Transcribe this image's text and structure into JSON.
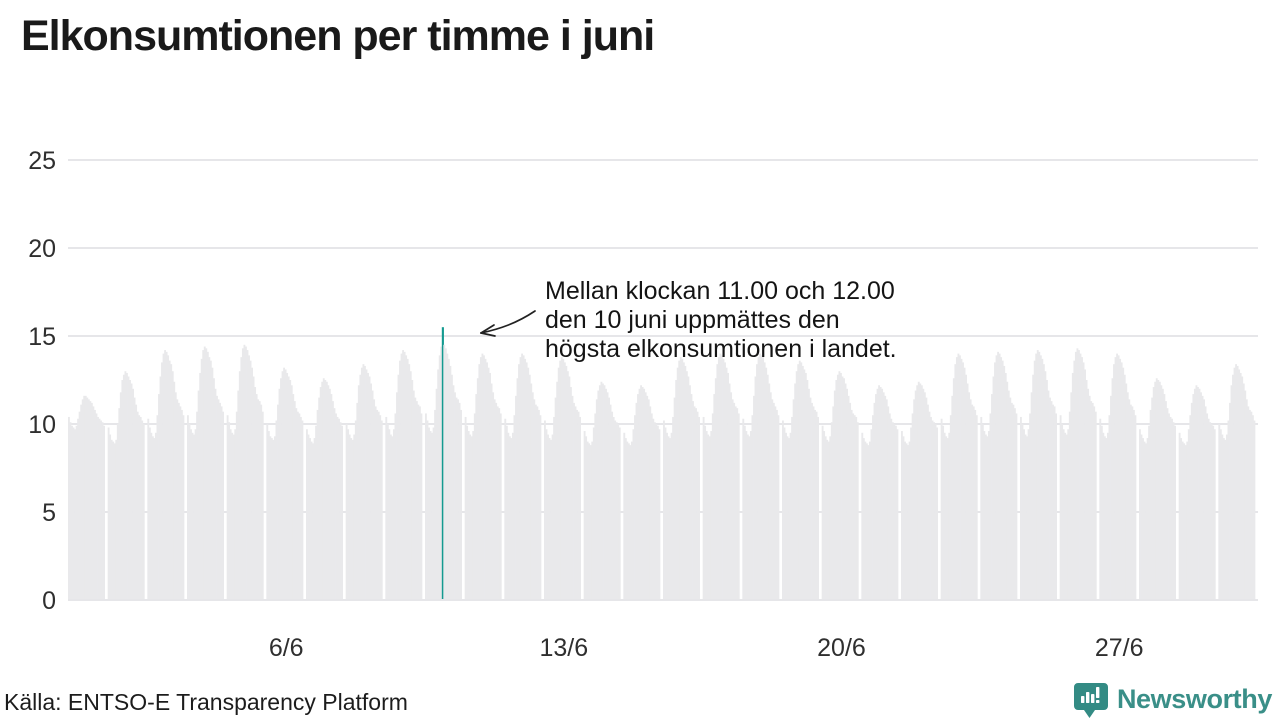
{
  "title": "Elkonsumtionen per timme i juni",
  "annotation": {
    "lines": [
      "Mellan klockan 11.00 och 12.00",
      "den 10 juni uppmättes den",
      "högsta elkonsumtionen i landet."
    ]
  },
  "source": "Källa: ENTSO-E Transparency Platform",
  "logo": {
    "name": "Newsworthy"
  },
  "colors": {
    "bar": "#e9e9eb",
    "highlight": "#149a90",
    "grid": "#e6e6e9",
    "axis_text": "#2f2f2f",
    "brand": "#3a8f88",
    "icon": "#338b84"
  },
  "chart_data": {
    "type": "bar",
    "title": "Elkonsumtionen per timme i juni",
    "xlabel": "",
    "ylabel": "",
    "ylim": [
      0,
      25
    ],
    "y_ticks": [
      0,
      5,
      10,
      15,
      20,
      25
    ],
    "x_ticks": [
      {
        "day": 6,
        "label": "6/6"
      },
      {
        "day": 13,
        "label": "13/6"
      },
      {
        "day": 20,
        "label": "20/6"
      },
      {
        "day": 27,
        "label": "27/6"
      }
    ],
    "grid": "horizontal",
    "highlight": {
      "day": 10,
      "hour": 11,
      "value": 15.5
    },
    "days": [
      {
        "day": 1,
        "values": [
          10.4,
          10.1,
          9.9,
          9.8,
          9.7,
          9.9,
          10.3,
          10.7,
          11.1,
          11.4,
          11.6,
          11.6,
          11.5,
          11.4,
          11.3,
          11.2,
          11.0,
          10.8,
          10.6,
          10.4,
          10.3,
          10.2,
          10.1,
          9.9
        ]
      },
      {
        "day": 2,
        "values": [
          9.8,
          9.4,
          9.1,
          9.0,
          8.9,
          9.1,
          10.0,
          10.9,
          11.8,
          12.5,
          12.8,
          13.0,
          12.9,
          12.7,
          12.5,
          12.3,
          12.0,
          11.5,
          11.1,
          10.7,
          10.5,
          10.4,
          10.2,
          10.0
        ]
      },
      {
        "day": 3,
        "values": [
          10.3,
          9.8,
          9.5,
          9.3,
          9.2,
          9.5,
          10.5,
          11.7,
          12.7,
          13.5,
          14.0,
          14.2,
          14.1,
          13.9,
          13.6,
          13.4,
          13.0,
          12.4,
          11.8,
          11.4,
          11.2,
          11.0,
          10.8,
          10.5
        ]
      },
      {
        "day": 4,
        "values": [
          10.5,
          10.0,
          9.7,
          9.5,
          9.4,
          9.7,
          10.7,
          11.9,
          12.9,
          13.7,
          14.2,
          14.4,
          14.3,
          14.1,
          13.8,
          13.6,
          13.2,
          12.6,
          12.0,
          11.6,
          11.4,
          11.2,
          11.0,
          10.7
        ]
      },
      {
        "day": 5,
        "values": [
          10.5,
          10.1,
          9.7,
          9.5,
          9.4,
          9.7,
          10.7,
          11.9,
          13.0,
          13.8,
          14.3,
          14.5,
          14.4,
          14.2,
          13.9,
          13.6,
          13.2,
          12.7,
          12.1,
          11.7,
          11.4,
          11.3,
          11.1,
          10.7
        ]
      },
      {
        "day": 6,
        "values": [
          10.0,
          9.6,
          9.3,
          9.2,
          9.1,
          9.3,
          10.2,
          11.1,
          12.0,
          12.6,
          13.0,
          13.2,
          13.1,
          12.9,
          12.7,
          12.5,
          12.2,
          11.7,
          11.3,
          10.9,
          10.7,
          10.6,
          10.4,
          10.2
        ]
      },
      {
        "day": 7,
        "values": [
          9.7,
          9.4,
          9.2,
          9.0,
          8.9,
          9.2,
          9.9,
          10.8,
          11.5,
          12.1,
          12.4,
          12.6,
          12.5,
          12.4,
          12.2,
          12.0,
          11.7,
          11.3,
          10.9,
          10.6,
          10.4,
          10.3,
          10.1,
          9.9
        ]
      },
      {
        "day": 8,
        "values": [
          10.0,
          9.7,
          9.4,
          9.2,
          9.1,
          9.4,
          10.2,
          11.2,
          12.2,
          12.8,
          13.2,
          13.4,
          13.3,
          13.1,
          12.9,
          12.7,
          12.3,
          11.9,
          11.4,
          11.0,
          10.8,
          10.7,
          10.5,
          10.2
        ]
      },
      {
        "day": 9,
        "values": [
          10.4,
          10.0,
          9.7,
          9.4,
          9.3,
          9.7,
          10.6,
          11.8,
          12.8,
          13.6,
          14.0,
          14.2,
          14.1,
          13.9,
          13.7,
          13.4,
          13.0,
          12.5,
          11.9,
          11.5,
          11.3,
          11.1,
          11.0,
          10.6
        ]
      },
      {
        "day": 10,
        "values": [
          10.6,
          10.2,
          9.8,
          9.6,
          9.5,
          9.8,
          10.8,
          12.0,
          13.1,
          13.9,
          14.4,
          15.5,
          14.5,
          14.3,
          14.0,
          13.7,
          13.3,
          12.8,
          12.2,
          11.8,
          11.5,
          11.4,
          11.2,
          10.8
        ]
      },
      {
        "day": 11,
        "values": [
          10.4,
          9.9,
          9.6,
          9.4,
          9.3,
          9.6,
          10.6,
          11.7,
          12.6,
          13.4,
          13.8,
          14.0,
          13.9,
          13.7,
          13.5,
          13.2,
          12.9,
          12.3,
          11.8,
          11.4,
          11.2,
          11.0,
          10.9,
          10.6
        ]
      },
      {
        "day": 12,
        "values": [
          10.3,
          9.9,
          9.5,
          9.3,
          9.2,
          9.5,
          10.5,
          11.6,
          12.6,
          13.4,
          13.8,
          14.0,
          13.9,
          13.7,
          13.5,
          13.2,
          12.8,
          12.3,
          11.8,
          11.4,
          11.1,
          11.0,
          10.8,
          10.5
        ]
      },
      {
        "day": 13,
        "values": [
          10.2,
          9.7,
          9.4,
          9.2,
          9.1,
          9.4,
          10.4,
          11.5,
          12.4,
          13.2,
          13.6,
          13.8,
          13.7,
          13.5,
          13.3,
          13.0,
          12.7,
          12.1,
          11.6,
          11.2,
          11.0,
          10.8,
          10.7,
          10.4
        ]
      },
      {
        "day": 14,
        "values": [
          9.6,
          9.3,
          9.0,
          8.9,
          8.8,
          9.0,
          9.8,
          10.6,
          11.4,
          11.9,
          12.2,
          12.4,
          12.3,
          12.2,
          12.0,
          11.8,
          11.5,
          11.1,
          10.7,
          10.4,
          10.2,
          10.1,
          10.0,
          9.8
        ]
      },
      {
        "day": 15,
        "values": [
          9.5,
          9.2,
          9.0,
          8.9,
          8.8,
          9.0,
          9.7,
          10.5,
          11.2,
          11.7,
          12.0,
          12.2,
          12.1,
          12.0,
          11.8,
          11.6,
          11.4,
          11.0,
          10.6,
          10.3,
          10.1,
          10.0,
          9.9,
          9.7
        ]
      },
      {
        "day": 16,
        "values": [
          10.2,
          9.8,
          9.5,
          9.3,
          9.2,
          9.5,
          10.4,
          11.5,
          12.5,
          13.2,
          13.6,
          13.8,
          13.7,
          13.5,
          13.3,
          13.0,
          12.7,
          12.2,
          11.7,
          11.3,
          11.0,
          10.9,
          10.7,
          10.4
        ]
      },
      {
        "day": 17,
        "values": [
          10.4,
          9.9,
          9.6,
          9.4,
          9.3,
          9.6,
          10.6,
          11.7,
          12.6,
          13.4,
          13.8,
          14.0,
          13.9,
          13.7,
          13.5,
          13.2,
          12.9,
          12.3,
          11.8,
          11.4,
          11.2,
          11.0,
          10.9,
          10.6
        ]
      },
      {
        "day": 18,
        "values": [
          10.3,
          9.9,
          9.6,
          9.4,
          9.3,
          9.6,
          10.5,
          11.6,
          12.7,
          13.4,
          13.8,
          14.0,
          13.9,
          13.8,
          13.5,
          13.2,
          12.8,
          12.3,
          11.8,
          11.4,
          11.2,
          11.0,
          10.8,
          10.5
        ]
      },
      {
        "day": 19,
        "values": [
          10.2,
          9.8,
          9.5,
          9.3,
          9.2,
          9.5,
          10.4,
          11.4,
          12.3,
          13.0,
          13.4,
          13.6,
          13.5,
          13.3,
          13.1,
          12.9,
          12.5,
          12.0,
          11.5,
          11.2,
          11.0,
          10.8,
          10.7,
          10.4
        ]
      },
      {
        "day": 20,
        "values": [
          9.9,
          9.6,
          9.3,
          9.1,
          9.0,
          9.3,
          10.1,
          11.0,
          11.9,
          12.5,
          12.8,
          13.0,
          12.9,
          12.7,
          12.6,
          12.3,
          12.0,
          11.6,
          11.2,
          10.8,
          10.6,
          10.5,
          10.4,
          10.1
        ]
      },
      {
        "day": 21,
        "values": [
          9.5,
          9.2,
          9.0,
          8.9,
          8.8,
          9.0,
          9.7,
          10.5,
          11.2,
          11.7,
          12.0,
          12.2,
          12.1,
          12.0,
          11.8,
          11.6,
          11.4,
          11.0,
          10.6,
          10.3,
          10.1,
          10.0,
          9.9,
          9.7
        ]
      },
      {
        "day": 22,
        "values": [
          9.6,
          9.3,
          9.0,
          8.9,
          8.8,
          9.0,
          9.8,
          10.6,
          11.4,
          11.9,
          12.2,
          12.4,
          12.3,
          12.2,
          12.0,
          11.8,
          11.5,
          11.1,
          10.7,
          10.4,
          10.2,
          10.1,
          10.0,
          9.8
        ]
      },
      {
        "day": 23,
        "values": [
          10.3,
          9.9,
          9.5,
          9.3,
          9.2,
          9.5,
          10.5,
          11.6,
          12.6,
          13.4,
          13.8,
          14.0,
          13.9,
          13.7,
          13.5,
          13.2,
          12.8,
          12.3,
          11.8,
          11.4,
          11.1,
          11.0,
          10.8,
          10.5
        ]
      },
      {
        "day": 24,
        "values": [
          10.4,
          10.0,
          9.6,
          9.4,
          9.3,
          9.6,
          10.6,
          11.7,
          12.7,
          13.5,
          13.9,
          14.1,
          14.0,
          13.8,
          13.6,
          13.3,
          12.9,
          12.4,
          11.9,
          11.5,
          11.2,
          11.1,
          10.9,
          10.6
        ]
      },
      {
        "day": 25,
        "values": [
          10.4,
          10.0,
          9.7,
          9.4,
          9.3,
          9.7,
          10.6,
          11.8,
          12.8,
          13.6,
          14.0,
          14.2,
          14.1,
          13.9,
          13.7,
          13.4,
          13.0,
          12.5,
          11.9,
          11.5,
          11.3,
          11.1,
          11.0,
          10.6
        ]
      },
      {
        "day": 26,
        "values": [
          10.5,
          10.0,
          9.7,
          9.5,
          9.4,
          9.7,
          10.7,
          11.8,
          12.9,
          13.6,
          14.1,
          14.3,
          14.2,
          14.0,
          13.8,
          13.5,
          13.1,
          12.5,
          12.0,
          11.6,
          11.3,
          11.2,
          11.0,
          10.7
        ]
      },
      {
        "day": 27,
        "values": [
          10.3,
          9.9,
          9.5,
          9.3,
          9.2,
          9.5,
          10.5,
          11.6,
          12.6,
          13.4,
          13.8,
          14.0,
          13.9,
          13.7,
          13.5,
          13.2,
          12.8,
          12.3,
          11.8,
          11.4,
          11.1,
          11.0,
          10.8,
          10.5
        ]
      },
      {
        "day": 28,
        "values": [
          9.7,
          9.4,
          9.2,
          9.0,
          8.9,
          9.2,
          9.9,
          10.8,
          11.5,
          12.1,
          12.4,
          12.6,
          12.5,
          12.4,
          12.2,
          12.0,
          11.7,
          11.3,
          10.9,
          10.6,
          10.4,
          10.3,
          10.1,
          9.9
        ]
      },
      {
        "day": 29,
        "values": [
          9.5,
          9.2,
          9.0,
          8.9,
          8.8,
          9.0,
          9.7,
          10.5,
          11.2,
          11.7,
          12.0,
          12.2,
          12.1,
          12.0,
          11.8,
          11.6,
          11.4,
          11.0,
          10.6,
          10.3,
          10.1,
          10.0,
          9.9,
          9.7
        ]
      },
      {
        "day": 30,
        "values": [
          10.0,
          9.7,
          9.4,
          9.2,
          9.1,
          9.4,
          10.2,
          11.2,
          12.2,
          12.8,
          13.2,
          13.4,
          13.3,
          13.1,
          12.9,
          12.7,
          12.3,
          11.9,
          11.4,
          11.0,
          10.8,
          10.7,
          10.5,
          10.2
        ]
      }
    ]
  }
}
